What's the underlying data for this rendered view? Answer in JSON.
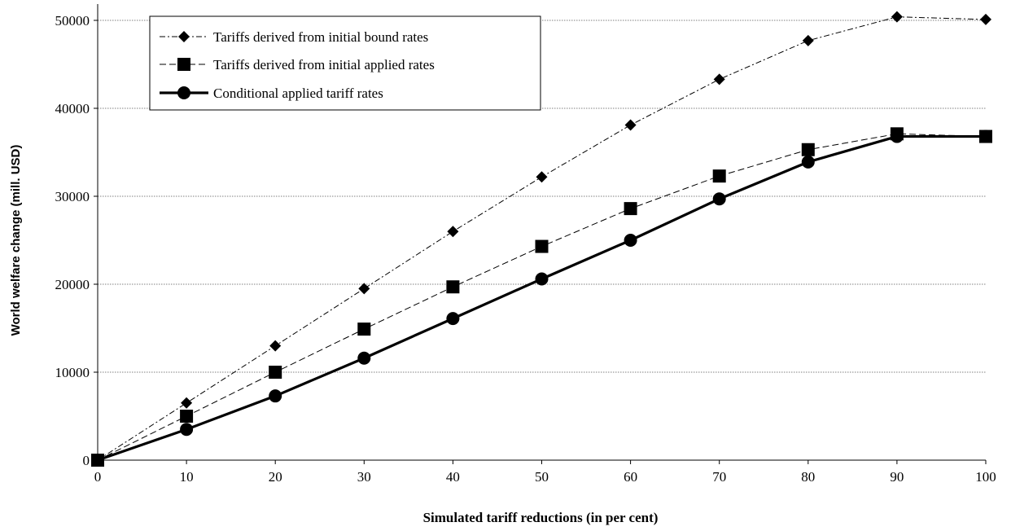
{
  "chart_data": {
    "type": "line",
    "title": "",
    "xlabel": "Simulated tariff reductions (in per cent)",
    "ylabel": "World welfare change (mill. USD)",
    "x": [
      0,
      10,
      20,
      30,
      40,
      50,
      60,
      70,
      80,
      90,
      100
    ],
    "x_tick_labels": [
      "0",
      "10",
      "20",
      "30",
      "40",
      "50",
      "60",
      "70",
      "80",
      "90",
      "100"
    ],
    "y_tick_labels": [
      "0",
      "10000",
      "20000",
      "30000",
      "40000",
      "50000"
    ],
    "xlim": [
      0,
      100
    ],
    "ylim": [
      0,
      50000
    ],
    "y_ticks": [
      0,
      10000,
      20000,
      30000,
      40000,
      50000
    ],
    "grid": "horizontal",
    "legend_position": "top-left",
    "series": [
      {
        "name": "Tariffs derived from initial bound rates",
        "values": [
          0,
          6500,
          13000,
          19500,
          26000,
          32200,
          38100,
          43300,
          47700,
          50400,
          50100
        ],
        "marker": "diamond",
        "line": "dash-dot"
      },
      {
        "name": "Tariffs derived from initial applied rates",
        "values": [
          0,
          5000,
          10000,
          14900,
          19700,
          24300,
          28600,
          32300,
          35300,
          37100,
          36800
        ],
        "marker": "square",
        "line": "dashed"
      },
      {
        "name": "Conditional applied tariff rates",
        "values": [
          0,
          3500,
          7300,
          11600,
          16100,
          20600,
          25000,
          29700,
          33900,
          36800,
          36800
        ],
        "marker": "circle",
        "line": "solid"
      }
    ]
  }
}
